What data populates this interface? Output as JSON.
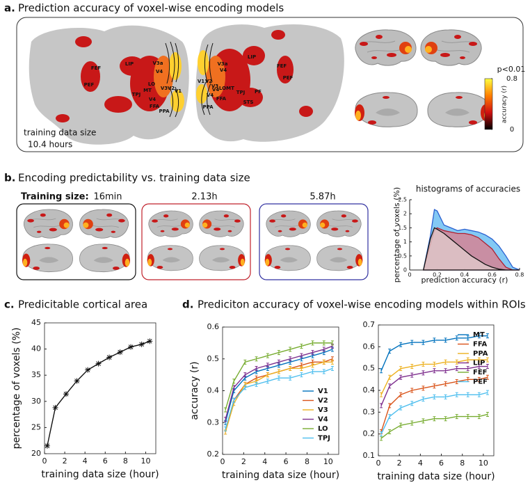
{
  "panel_a": {
    "label": "a.",
    "title": "Prediction accuracy of voxel-wise encoding models",
    "flatmap_labels_left": [
      "FEF",
      "PEF",
      "LIP",
      "V3a",
      "V4",
      "LO",
      "MT",
      "TPJ",
      "V3",
      "V2",
      "V1",
      "V4",
      "FFA",
      "PPA"
    ],
    "flatmap_labels_right": [
      "LIP",
      "V3a",
      "V4",
      "V1",
      "V2",
      "V3",
      "V4",
      "LO",
      "MT",
      "TPJ",
      "PF",
      "STS",
      "V4",
      "FFA",
      "PPA",
      "FEF",
      "PEF"
    ],
    "training_note": [
      "training data size",
      "10.4 hours"
    ],
    "colorbar": {
      "threshold": "p<0.01",
      "label": "accuracy (r)",
      "ticks": [
        0,
        0.8
      ],
      "colors": [
        "#000000",
        "#d01010",
        "#ff8000",
        "#ffff40"
      ]
    }
  },
  "panel_b": {
    "label": "b.",
    "title": "Encoding predictability vs. training data size",
    "training_label": "Training size:",
    "sizes": [
      "16min",
      "2.13h",
      "5.87h"
    ],
    "box_colors": [
      "#111111",
      "#c0202a",
      "#3030a0"
    ]
  },
  "panel_d": {
    "label": "d.",
    "title": "Prediciton accuracy of voxel-wise encoding models within ROIs"
  },
  "chart_data": [
    {
      "type": "area",
      "title": "histograms of accuracies",
      "xlabel": "prediction accuracy (r)",
      "ylabel": "percentage of voxels (%)",
      "x": [
        0.1,
        0.15,
        0.18,
        0.2,
        0.25,
        0.3,
        0.35,
        0.4,
        0.45,
        0.5,
        0.55,
        0.6,
        0.65,
        0.7,
        0.75,
        0.8
      ],
      "series": [
        {
          "color": "#2a60d0",
          "fill": "#59b7f0",
          "values": [
            0,
            1.2,
            2.15,
            2.1,
            1.6,
            1.5,
            1.4,
            1.45,
            1.4,
            1.35,
            1.25,
            1.1,
            0.85,
            0.5,
            0.1,
            0
          ]
        },
        {
          "color": "#b02030",
          "fill": "#e07a88",
          "values": [
            0,
            0.9,
            1.4,
            1.5,
            1.4,
            1.35,
            1.3,
            1.3,
            1.25,
            1.15,
            0.95,
            0.75,
            0.4,
            0.1,
            0,
            0
          ]
        },
        {
          "color": "#111111",
          "fill": "#e0cccc",
          "values": [
            0,
            1.1,
            1.5,
            1.45,
            1.3,
            1.1,
            0.9,
            0.7,
            0.5,
            0.35,
            0.2,
            0.1,
            0.03,
            0,
            0,
            0
          ]
        }
      ],
      "xlim": [
        0,
        0.8
      ],
      "xticks": [
        0,
        0.2,
        0.4,
        0.6,
        0.8
      ],
      "ylim": [
        0,
        2.5
      ],
      "yticks": [
        0,
        0.5,
        1,
        1.5,
        2,
        2.5
      ]
    },
    {
      "type": "line",
      "label": "c.",
      "title": "Predicitable cortical area",
      "xlabel": "training data size (hour)",
      "ylabel": "percentage of voxels (%)",
      "x": [
        0.27,
        1.07,
        2.13,
        3.2,
        4.27,
        5.33,
        6.4,
        7.47,
        8.53,
        9.6,
        10.4
      ],
      "series": [
        {
          "color": "#111111",
          "marker": "star",
          "values": [
            21.5,
            28.8,
            31.4,
            33.9,
            36.0,
            37.2,
            38.4,
            39.4,
            40.4,
            40.9,
            41.5
          ]
        }
      ],
      "xlim": [
        0,
        11
      ],
      "xticks": [
        0,
        2,
        4,
        6,
        8,
        10
      ],
      "ylim": [
        20,
        45
      ],
      "yticks": [
        20,
        25,
        30,
        35,
        40,
        45
      ]
    },
    {
      "type": "line",
      "xlabel": "training data size (hour)",
      "ylabel": "accuracy (r)",
      "legend": "lower right",
      "x": [
        0.27,
        1.07,
        2.13,
        3.2,
        4.27,
        5.33,
        6.4,
        7.47,
        8.53,
        9.6,
        10.4
      ],
      "series": [
        {
          "name": "V1",
          "color": "#0072bd",
          "values": [
            0.3,
            0.4,
            0.44,
            0.46,
            0.47,
            0.48,
            0.49,
            0.5,
            0.51,
            0.52,
            0.53
          ]
        },
        {
          "name": "V2",
          "color": "#d95319",
          "values": [
            0.27,
            0.37,
            0.42,
            0.44,
            0.45,
            0.46,
            0.47,
            0.48,
            0.49,
            0.49,
            0.5
          ]
        },
        {
          "name": "V3",
          "color": "#edb120",
          "values": [
            0.27,
            0.36,
            0.42,
            0.43,
            0.45,
            0.46,
            0.47,
            0.47,
            0.48,
            0.49,
            0.49
          ]
        },
        {
          "name": "V4",
          "color": "#7e2f8e",
          "values": [
            0.31,
            0.41,
            0.45,
            0.47,
            0.48,
            0.49,
            0.5,
            0.51,
            0.52,
            0.53,
            0.54
          ]
        },
        {
          "name": "LO",
          "color": "#77ac30",
          "values": [
            0.34,
            0.43,
            0.49,
            0.5,
            0.51,
            0.52,
            0.53,
            0.54,
            0.55,
            0.55,
            0.55
          ]
        },
        {
          "name": "TPJ",
          "color": "#4dbeee",
          "values": [
            0.28,
            0.37,
            0.41,
            0.42,
            0.43,
            0.44,
            0.44,
            0.45,
            0.46,
            0.46,
            0.47
          ]
        }
      ],
      "xlim": [
        0,
        11
      ],
      "xticks": [
        0,
        2,
        4,
        6,
        8,
        10
      ],
      "ylim": [
        0.2,
        0.6
      ],
      "yticks": [
        0.2,
        0.3,
        0.4,
        0.5,
        0.6
      ]
    },
    {
      "type": "line",
      "xlabel": "training data size (hour)",
      "legend": "upper right",
      "x": [
        0.27,
        1.07,
        2.13,
        3.2,
        4.27,
        5.33,
        6.4,
        7.47,
        8.53,
        9.6,
        10.4
      ],
      "series": [
        {
          "name": "MT",
          "color": "#0072bd",
          "values": [
            0.49,
            0.58,
            0.61,
            0.62,
            0.62,
            0.63,
            0.63,
            0.64,
            0.64,
            0.65,
            0.65
          ]
        },
        {
          "name": "FFA",
          "color": "#d95319",
          "values": [
            0.21,
            0.33,
            0.38,
            0.4,
            0.41,
            0.42,
            0.43,
            0.44,
            0.45,
            0.45,
            0.46
          ]
        },
        {
          "name": "PPA",
          "color": "#edb120",
          "values": [
            0.38,
            0.46,
            0.5,
            0.51,
            0.52,
            0.52,
            0.53,
            0.53,
            0.54,
            0.54,
            0.54
          ]
        },
        {
          "name": "LIP",
          "color": "#7e2f8e",
          "values": [
            0.33,
            0.42,
            0.46,
            0.47,
            0.48,
            0.49,
            0.49,
            0.5,
            0.5,
            0.51,
            0.51
          ]
        },
        {
          "name": "FEF",
          "color": "#77ac30",
          "values": [
            0.18,
            0.21,
            0.24,
            0.25,
            0.26,
            0.27,
            0.27,
            0.28,
            0.28,
            0.28,
            0.29
          ]
        },
        {
          "name": "PEF",
          "color": "#4dbeee",
          "values": [
            0.2,
            0.28,
            0.32,
            0.34,
            0.36,
            0.37,
            0.37,
            0.38,
            0.38,
            0.38,
            0.39
          ]
        }
      ],
      "xlim": [
        0,
        11
      ],
      "xticks": [
        0,
        2,
        4,
        6,
        8,
        10
      ],
      "ylim": [
        0.1,
        0.7
      ],
      "yticks": [
        0.1,
        0.2,
        0.3,
        0.4,
        0.5,
        0.6,
        0.7
      ]
    }
  ]
}
